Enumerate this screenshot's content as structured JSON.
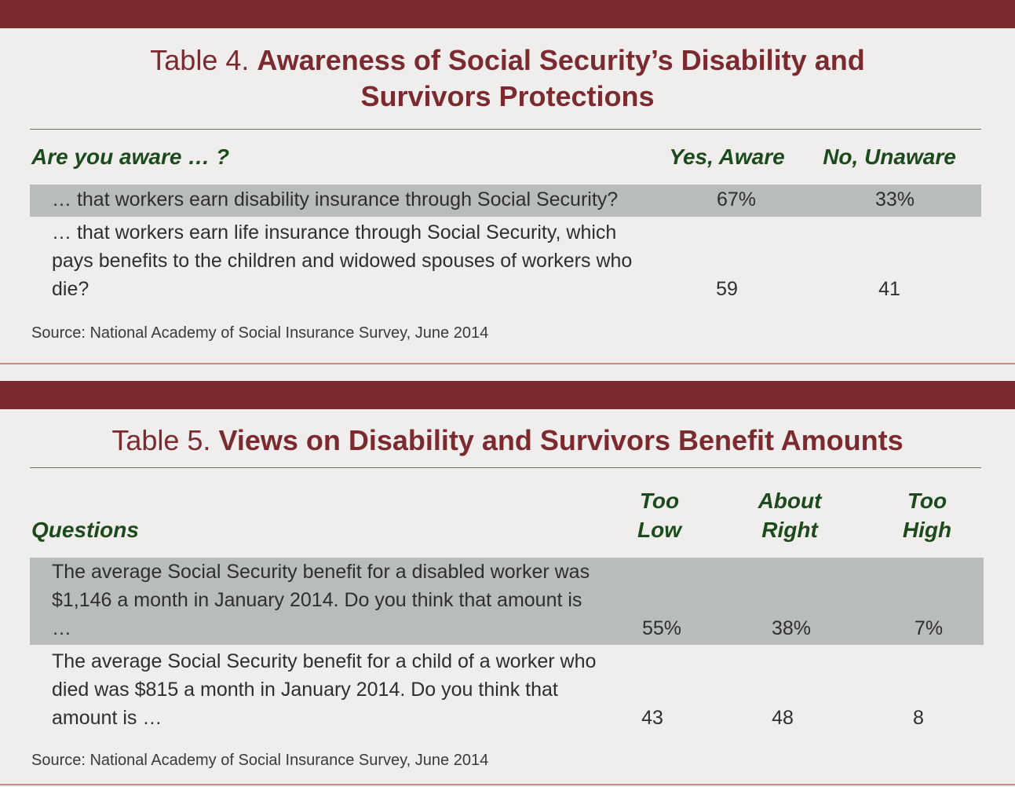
{
  "table4": {
    "prefix": "Table 4.",
    "title": "Awareness of Social Security’s Disability and Survivors Protections",
    "header": [
      "Are you aware … ?",
      "Yes, Aware",
      "No, Unaware"
    ],
    "rows": [
      [
        "… that workers earn disability insurance through Social Security?",
        "67%",
        "33%"
      ],
      [
        "… that workers earn life insurance through Social Security, which pays benefits to the children and widowed spouses of workers who die?",
        "59",
        "41"
      ]
    ],
    "source": "Source: National Academy of Social Insurance Survey, June 2014"
  },
  "table5": {
    "prefix": "Table 5.",
    "title": "Views on Disability and Survivors Benefit Amounts",
    "header": [
      "Questions",
      "Too Low",
      "About Right",
      "Too High"
    ],
    "rows": [
      [
        "The average Social Security benefit for a disabled worker was $1,146 a month in January 2014. Do you think that amount is …",
        "55%",
        "38%",
        "7%"
      ],
      [
        "The average Social Security benefit for a child of a worker who died was $815 a month in January 2014. Do you think that amount is …",
        "43",
        "48",
        "8"
      ]
    ],
    "source": "Source: National Academy of Social Insurance Survey, June 2014"
  }
}
